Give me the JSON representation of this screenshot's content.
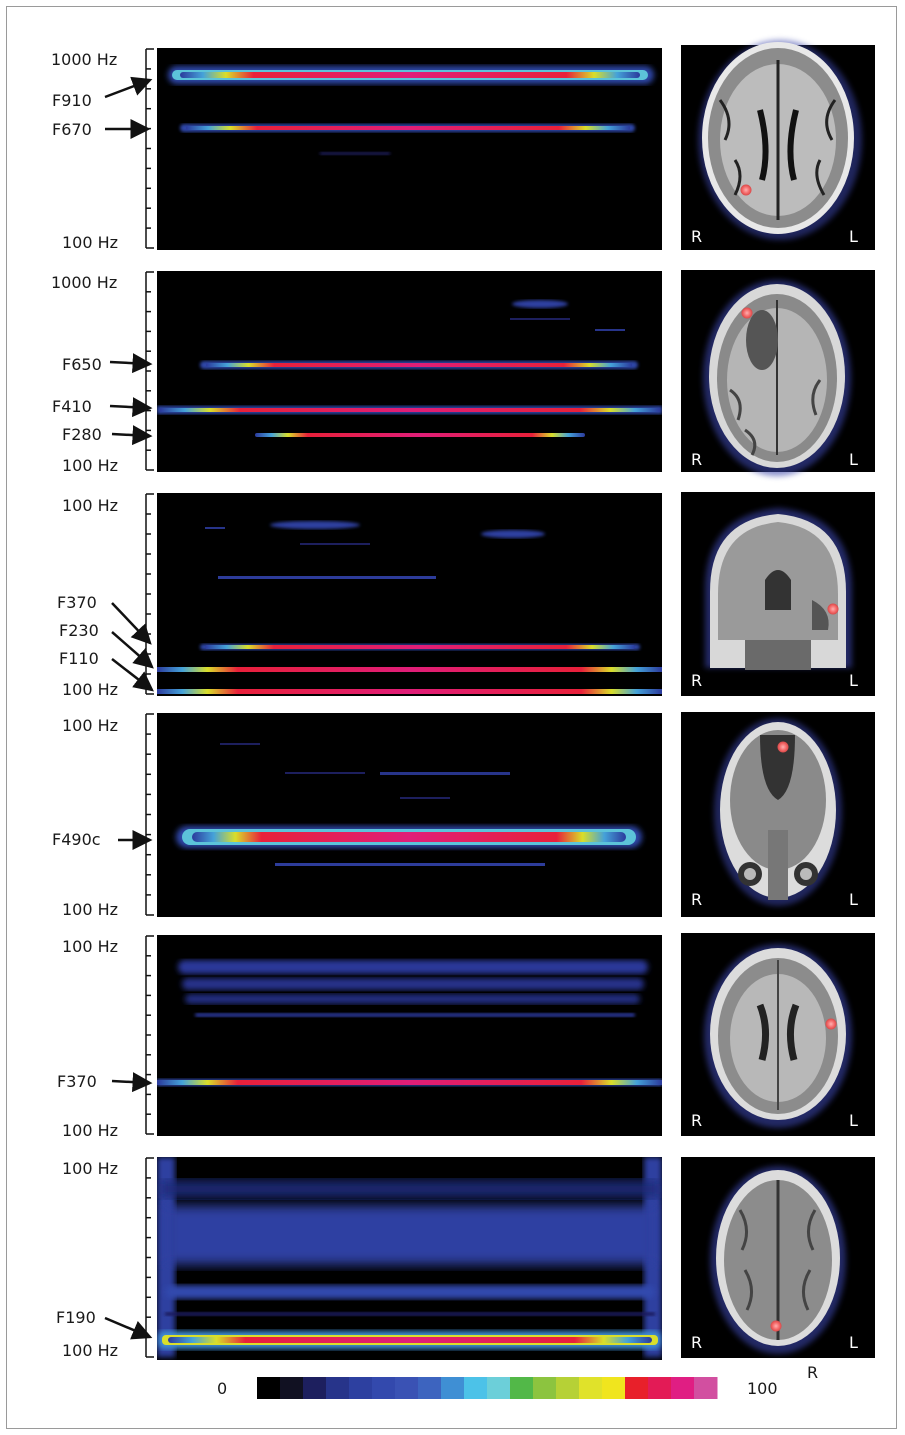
{
  "colorbar": {
    "min_label": "0",
    "max_label": "100",
    "stops": [
      "#000000",
      "#111122",
      "#1d1f5e",
      "#27348a",
      "#2d40a0",
      "#3349ad",
      "#3a52b4",
      "#3d64bf",
      "#3f8fd4",
      "#4cc2e8",
      "#6ccfd9",
      "#52b848",
      "#8cc43f",
      "#b6d136",
      "#e0e22a",
      "#f0e51e",
      "#e8202a",
      "#e31b56",
      "#e01e83",
      "#d24fa0"
    ]
  },
  "corner_label": "R",
  "panels": [
    {
      "axis_top": "1000 Hz",
      "axis_bottom": "100 Hz",
      "annotations": [
        "F910",
        "F670"
      ],
      "mri": {
        "view": "axial",
        "left": "R",
        "right": "L"
      }
    },
    {
      "axis_top": "1000 Hz",
      "axis_bottom": "100 Hz",
      "annotations": [
        "F650",
        "F410",
        "F280"
      ],
      "mri": {
        "view": "axial",
        "left": "R",
        "right": "L"
      }
    },
    {
      "axis_top": "100 Hz",
      "axis_bottom": "100 Hz",
      "annotations": [
        "F370",
        "F230",
        "F110"
      ],
      "mri": {
        "view": "coronal",
        "left": "R",
        "right": "L"
      }
    },
    {
      "axis_top": "100 Hz",
      "axis_bottom": "100 Hz",
      "annotations": [
        "F490c"
      ],
      "mri": {
        "view": "coronal",
        "left": "R",
        "right": "L"
      }
    },
    {
      "axis_top": "100 Hz",
      "axis_bottom": "100 Hz",
      "annotations": [
        "F370"
      ],
      "mri": {
        "view": "axial",
        "left": "R",
        "right": "L"
      }
    },
    {
      "axis_top": "100 Hz",
      "axis_bottom": "100 Hz",
      "annotations": [
        "F190"
      ],
      "mri": {
        "view": "axial",
        "left": "R",
        "right": "L"
      }
    }
  ]
}
